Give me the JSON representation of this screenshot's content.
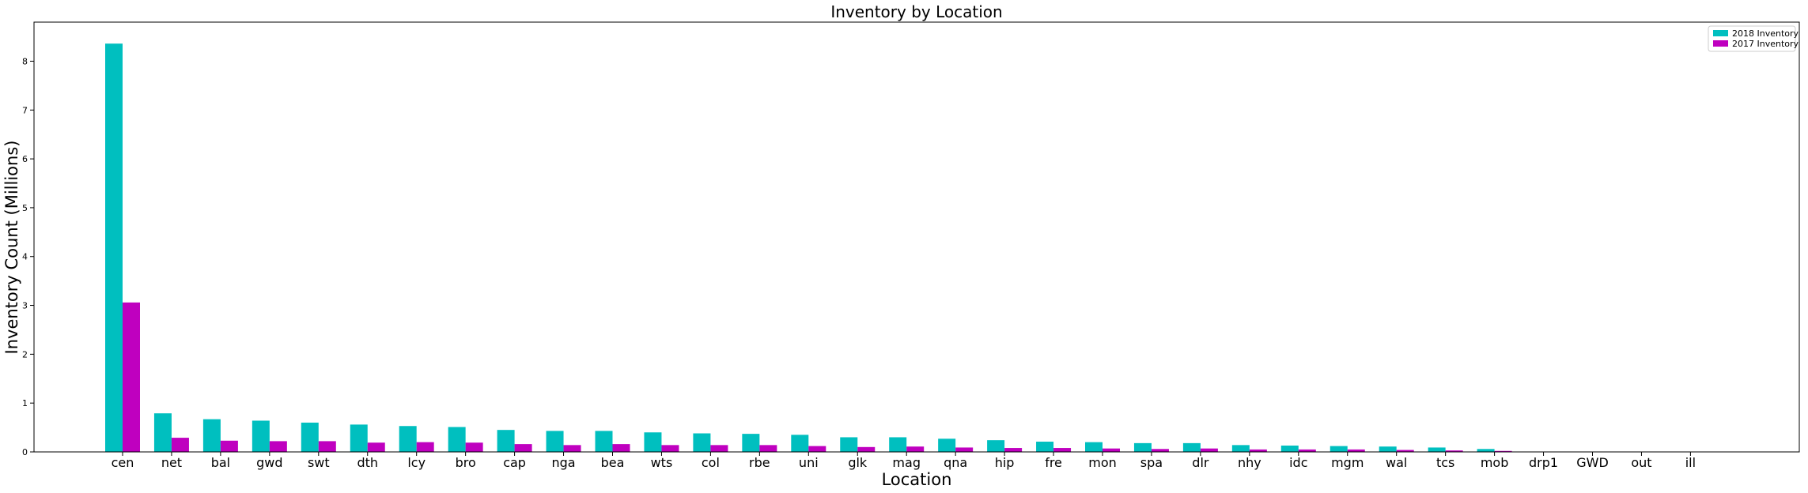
{
  "chart_data": {
    "type": "bar",
    "title": "Inventory by Location",
    "xlabel": "Location",
    "ylabel": "Inventory Count (Millions)",
    "ylim": [
      0,
      8.8
    ],
    "yticks": [
      0,
      1,
      2,
      3,
      4,
      5,
      6,
      7,
      8
    ],
    "grid": false,
    "legend_position": "top-right",
    "categories": [
      "cen",
      "net",
      "bal",
      "gwd",
      "swt",
      "dth",
      "lcy",
      "bro",
      "cap",
      "nga",
      "bea",
      "wts",
      "col",
      "rbe",
      "uni",
      "glk",
      "mag",
      "qna",
      "hip",
      "fre",
      "mon",
      "spa",
      "dlr",
      "nhy",
      "idc",
      "mgm",
      "wal",
      "tcs",
      "mob",
      "drp1",
      "GWD",
      "out",
      "ill"
    ],
    "series": [
      {
        "name": "2018 Inventory",
        "color": "#00bfbf",
        "values": [
          8.36,
          0.79,
          0.67,
          0.64,
          0.6,
          0.56,
          0.53,
          0.51,
          0.45,
          0.43,
          0.43,
          0.4,
          0.38,
          0.37,
          0.35,
          0.3,
          0.3,
          0.27,
          0.24,
          0.21,
          0.2,
          0.18,
          0.18,
          0.14,
          0.13,
          0.12,
          0.11,
          0.09,
          0.06,
          0.0,
          0.0,
          0.0,
          0.0
        ]
      },
      {
        "name": "2017 Inventory",
        "color": "#bf00bf",
        "values": [
          3.06,
          0.29,
          0.23,
          0.22,
          0.22,
          0.19,
          0.2,
          0.19,
          0.16,
          0.14,
          0.16,
          0.14,
          0.14,
          0.14,
          0.12,
          0.1,
          0.11,
          0.09,
          0.08,
          0.08,
          0.07,
          0.06,
          0.07,
          0.05,
          0.05,
          0.05,
          0.04,
          0.03,
          0.02,
          0.0,
          0.0,
          0.0,
          0.0
        ]
      }
    ]
  }
}
